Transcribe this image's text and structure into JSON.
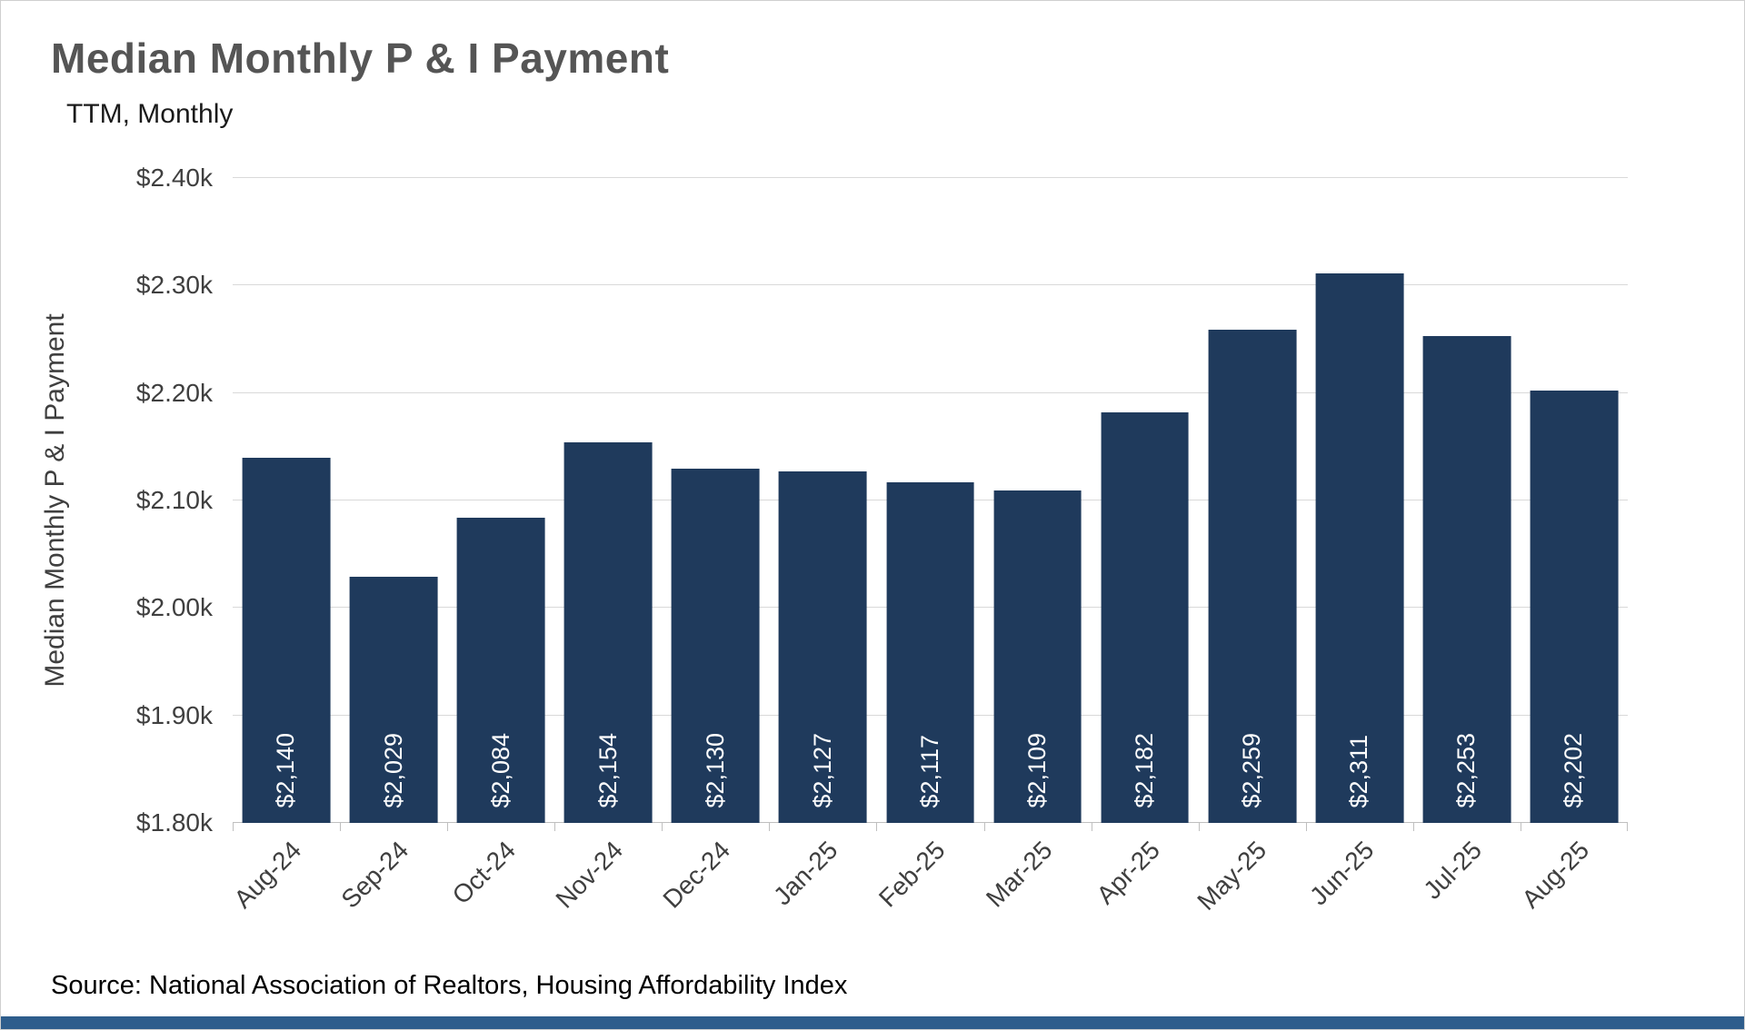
{
  "header": {
    "title": "Median Monthly P & I Payment",
    "subtitle": "TTM, Monthly"
  },
  "chart_data": {
    "type": "bar",
    "title": "Median Monthly P & I Payment",
    "subtitle": "TTM, Monthly",
    "categories": [
      "Aug-24",
      "Sep-24",
      "Oct-24",
      "Nov-24",
      "Dec-24",
      "Jan-25",
      "Feb-25",
      "Mar-25",
      "Apr-25",
      "May-25",
      "Jun-25",
      "Jul-25",
      "Aug-25"
    ],
    "values": [
      2140,
      2029,
      2084,
      2154,
      2130,
      2127,
      2117,
      2109,
      2182,
      2259,
      2311,
      2253,
      2202
    ],
    "bar_labels": [
      "$2,140",
      "$2,029",
      "$2,084",
      "$2,154",
      "$2,130",
      "$2,127",
      "$2,117",
      "$2,109",
      "$2,182",
      "$2,259",
      "$2,311",
      "$2,253",
      "$2,202"
    ],
    "xlabel": "",
    "ylabel": "Median Monthly P & I Payment",
    "ylim": [
      1800,
      2400
    ],
    "ytick_values": [
      1800,
      1900,
      2000,
      2100,
      2200,
      2300,
      2400
    ],
    "ytick_labels": [
      "$1.80k",
      "$1.90k",
      "$2.00k",
      "$2.10k",
      "$2.20k",
      "$2.30k",
      "$2.40k"
    ],
    "grid": true,
    "legend": false,
    "bar_color": "#1f3a5c",
    "gridline_color": "#d9d9d9"
  },
  "footer": {
    "source": "Source: National Association of Realtors, Housing Affordability Index",
    "stripe_color": "#2e5d8c"
  }
}
